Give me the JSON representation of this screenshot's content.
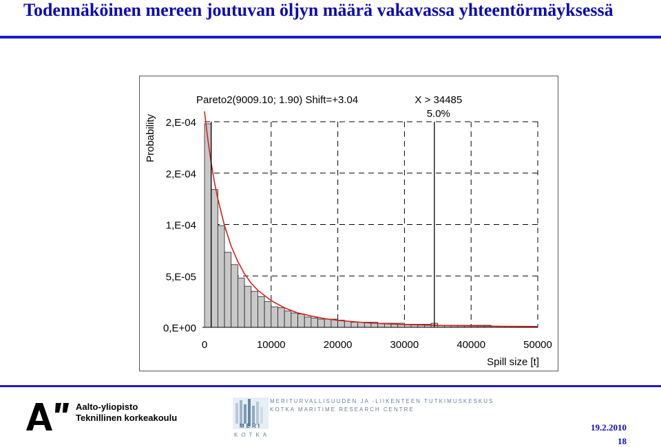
{
  "slide": {
    "title": "Todennäköinen mereen joutuvan öljyn määrä vakavassa yhteentörmäyksessä",
    "date": "19.2.2010",
    "page": "18"
  },
  "footer": {
    "aalto_name": "Aalto-yliopisto",
    "aalto_sub": "Teknillinen korkeakoulu",
    "meri_line1": "MERITURVALLISUUDEN JA -LIIKENTEEN TUTKIMUSKESKUS",
    "meri_line2": "KOTKA MARITIME RESEARCH CENTRE",
    "meri_logo_text": "MERI",
    "meri_kotka": "KOTKA"
  },
  "colors": {
    "title": "#0b0bb5",
    "rule": "#1a1ad0",
    "bars": "#c8c8c8",
    "curve": "#d42020"
  },
  "chart_data": {
    "type": "bar",
    "title": "Pareto2(9009.10; 1.90) Shift=+3.04",
    "annotation_threshold": "X > 34485",
    "annotation_pct": "5.0%",
    "threshold_x": 34485,
    "ylabel": "Probability",
    "xlabel": "Spill size [t]",
    "xlim": [
      0,
      50000
    ],
    "ylim": [
      0,
      0.0002
    ],
    "x_ticks": [
      0,
      10000,
      20000,
      30000,
      40000,
      50000
    ],
    "x_tick_labels": [
      "0",
      "10000",
      "20000",
      "30000",
      "40000",
      "50000"
    ],
    "y_ticks": [
      0,
      5e-05,
      0.0001,
      0.00015,
      0.0002
    ],
    "y_tick_labels": [
      "0,E+00",
      "5,E-05",
      "1,E-04",
      "2,E-04",
      "2,E-04"
    ],
    "bin_width": 1000,
    "bin_start": 0,
    "values": [
      0.000198,
      0.000134,
      9.9e-05,
      7.3e-05,
      6.1e-05,
      4.8e-05,
      4e-05,
      3.5e-05,
      3e-05,
      2.5e-05,
      2e-05,
      1.9e-05,
      1.6e-05,
      1.4e-05,
      1.3e-05,
      1e-05,
      9e-06,
      8e-06,
      8e-06,
      8e-06,
      7e-06,
      6e-06,
      5e-06,
      5e-06,
      5e-06,
      5e-06,
      4e-06,
      4e-06,
      4e-06,
      4e-06,
      3e-06,
      3e-06,
      3e-06,
      3e-06,
      4e-06,
      2e-06,
      2e-06,
      2e-06,
      2e-06,
      2e-06,
      2e-06,
      2e-06,
      2e-06,
      1e-06,
      1e-06,
      1e-06,
      1e-06,
      1e-06,
      1e-06,
      1e-06
    ],
    "fit_curve": {
      "name": "Pareto2(9009.10; 1.90) Shift=+3.04",
      "x": [
        0,
        500,
        1000,
        1500,
        2000,
        3000,
        4000,
        5000,
        6000,
        7000,
        8000,
        10000,
        12000,
        14000,
        16000,
        18000,
        20000,
        25000,
        30000,
        35000,
        40000,
        45000,
        50000
      ],
      "y": [
        0.00021,
        0.000183,
        0.00016,
        0.000141,
        0.000125,
        9.9e-05,
        7.9e-05,
        6.4e-05,
        5.2e-05,
        4.3e-05,
        3.6e-05,
        2.6e-05,
        1.9e-05,
        1.4e-05,
        1.1e-05,
        8.5e-06,
        6.8e-06,
        4.1e-06,
        2.7e-06,
        1.9e-06,
        1.4e-06,
        1e-06,
        8e-07
      ]
    },
    "grid": true,
    "legend": "none"
  }
}
